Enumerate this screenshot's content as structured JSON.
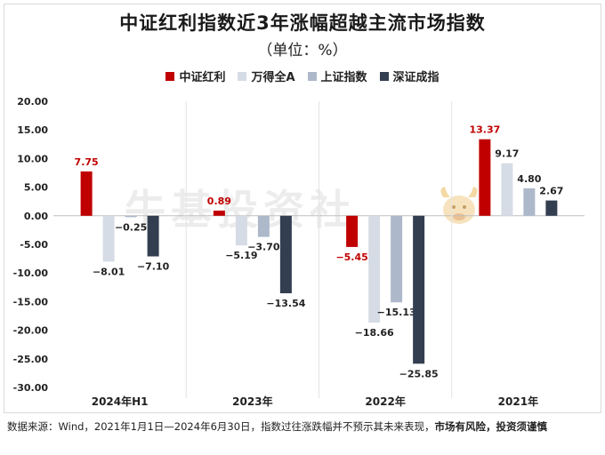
{
  "title": "中证红利指数近3年涨幅超越主流市场指数",
  "subtitle": "（单位：%）",
  "legend": [
    {
      "name": "中证红利",
      "color": "#c00000"
    },
    {
      "name": "万得全A",
      "color": "#d6dce5"
    },
    {
      "name": "上证指数",
      "color": "#adb9ca"
    },
    {
      "name": "深证成指",
      "color": "#333f50"
    }
  ],
  "watermark": "牛基投资社",
  "footnote": {
    "normal": "数据来源：Wind，2021年1月1日—2024年6月30日，指数过往涨跌幅并不预示其未来表现，",
    "bold": "市场有风险，投资须谨慎"
  },
  "chart_data": {
    "type": "bar",
    "categories": [
      "2024年H1",
      "2023年",
      "2022年",
      "2021年"
    ],
    "series": [
      {
        "name": "中证红利",
        "color": "#c00000",
        "values": [
          7.75,
          0.89,
          -5.45,
          13.37
        ]
      },
      {
        "name": "万得全A",
        "color": "#d6dce5",
        "values": [
          -8.01,
          -5.19,
          -18.66,
          9.17
        ]
      },
      {
        "name": "上证指数",
        "color": "#adb9ca",
        "values": [
          -0.25,
          -3.7,
          -15.13,
          4.8
        ]
      },
      {
        "name": "深证成指",
        "color": "#333f50",
        "values": [
          -7.1,
          -13.54,
          -25.85,
          2.67
        ]
      }
    ],
    "ylim": [
      -30,
      20
    ],
    "yticks": [
      "20.00",
      "15.00",
      "10.00",
      "5.00",
      "0.00",
      "-5.00",
      "-10.00",
      "-15.00",
      "-20.00",
      "-25.00",
      "-30.00"
    ],
    "data_labels": [
      [
        "7.75",
        "−8.01",
        "−0.25",
        "−7.10"
      ],
      [
        "0.89",
        "−5.19",
        "−3.70",
        "−13.54"
      ],
      [
        "−5.45",
        "−18.66",
        "−15.13",
        "−25.85"
      ],
      [
        "13.37",
        "9.17",
        "4.80",
        "2.67"
      ]
    ],
    "legend_position": "top"
  }
}
